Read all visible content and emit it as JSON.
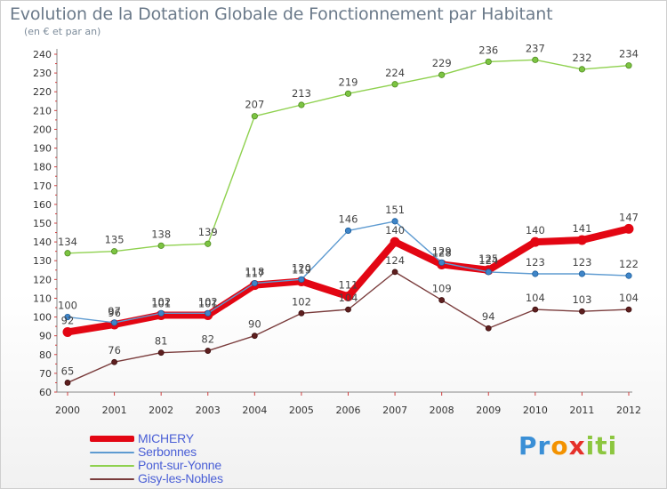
{
  "title": "Evolution de la Dotation Globale de Fonctionnement par Habitant",
  "subtitle": "(en € et par an)",
  "logo": {
    "p1": "Pr",
    "p2": "o",
    "p3": "x",
    "p4": "iti"
  },
  "chart_data": {
    "type": "line",
    "title": "Evolution de la Dotation Globale de Fonctionnement par Habitant",
    "ylabel": "(en € et par an)",
    "xlabel": "",
    "x": [
      "2000",
      "2001",
      "2002",
      "2003",
      "2004",
      "2005",
      "2006",
      "2007",
      "2008",
      "2009",
      "2010",
      "2011",
      "2012"
    ],
    "yticks": [
      60,
      70,
      80,
      90,
      100,
      110,
      120,
      130,
      140,
      150,
      160,
      170,
      180,
      190,
      200,
      210,
      220,
      230,
      240
    ],
    "ylim": [
      60,
      240
    ],
    "grid": false,
    "legend": "bottom-left",
    "series": [
      {
        "name": "MICHERY",
        "color": "#e30613",
        "values": [
          92,
          96,
          101,
          101,
          117,
          119,
          111,
          140,
          128,
          125,
          140,
          141,
          147
        ]
      },
      {
        "name": "Serbonnes",
        "color": "#5e9bd1",
        "values": [
          100,
          97,
          102,
          102,
          118,
          120,
          146,
          151,
          129,
          124,
          123,
          123,
          122
        ]
      },
      {
        "name": "Pont-sur-Yonne",
        "color": "#8fd14f",
        "values": [
          134,
          135,
          138,
          139,
          207,
          213,
          219,
          224,
          229,
          236,
          237,
          232,
          234
        ]
      },
      {
        "name": "Gisy-les-Nobles",
        "color": "#6b2b2b",
        "values": [
          65,
          76,
          81,
          82,
          90,
          102,
          104,
          124,
          109,
          94,
          104,
          103,
          104
        ]
      }
    ]
  }
}
